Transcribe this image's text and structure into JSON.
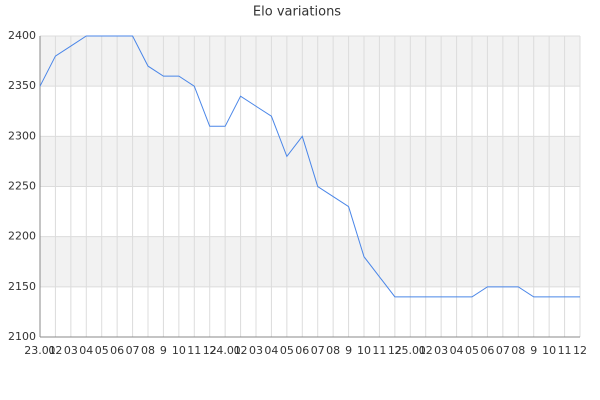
{
  "chart_data": {
    "type": "line",
    "title": "Elo variations",
    "categories": [
      "23.01",
      "02",
      "03",
      "04",
      "05",
      "06",
      "07",
      "08",
      "9",
      "10",
      "11",
      "12",
      "24.01",
      "02",
      "03",
      "04",
      "05",
      "06",
      "07",
      "08",
      "9",
      "10",
      "11",
      "12",
      "25.01",
      "02",
      "03",
      "04",
      "05",
      "06",
      "07",
      "08",
      "9",
      "10",
      "11",
      "12"
    ],
    "series": [
      {
        "name": "Elo",
        "color": "#4a86e8",
        "values": [
          2350,
          2380,
          2390,
          2400,
          2400,
          2400,
          2400,
          2370,
          2360,
          2360,
          2350,
          2310,
          2310,
          2340,
          2330,
          2320,
          2280,
          2300,
          2250,
          2240,
          2230,
          2180,
          2160,
          2140,
          2140,
          2140,
          2140,
          2140,
          2140,
          2150,
          2150,
          2150,
          2140,
          2140,
          2140,
          2140
        ]
      }
    ],
    "ylim": [
      2100,
      2400
    ],
    "yticks": [
      2100,
      2150,
      2200,
      2250,
      2300,
      2350,
      2400
    ],
    "grid": true
  }
}
